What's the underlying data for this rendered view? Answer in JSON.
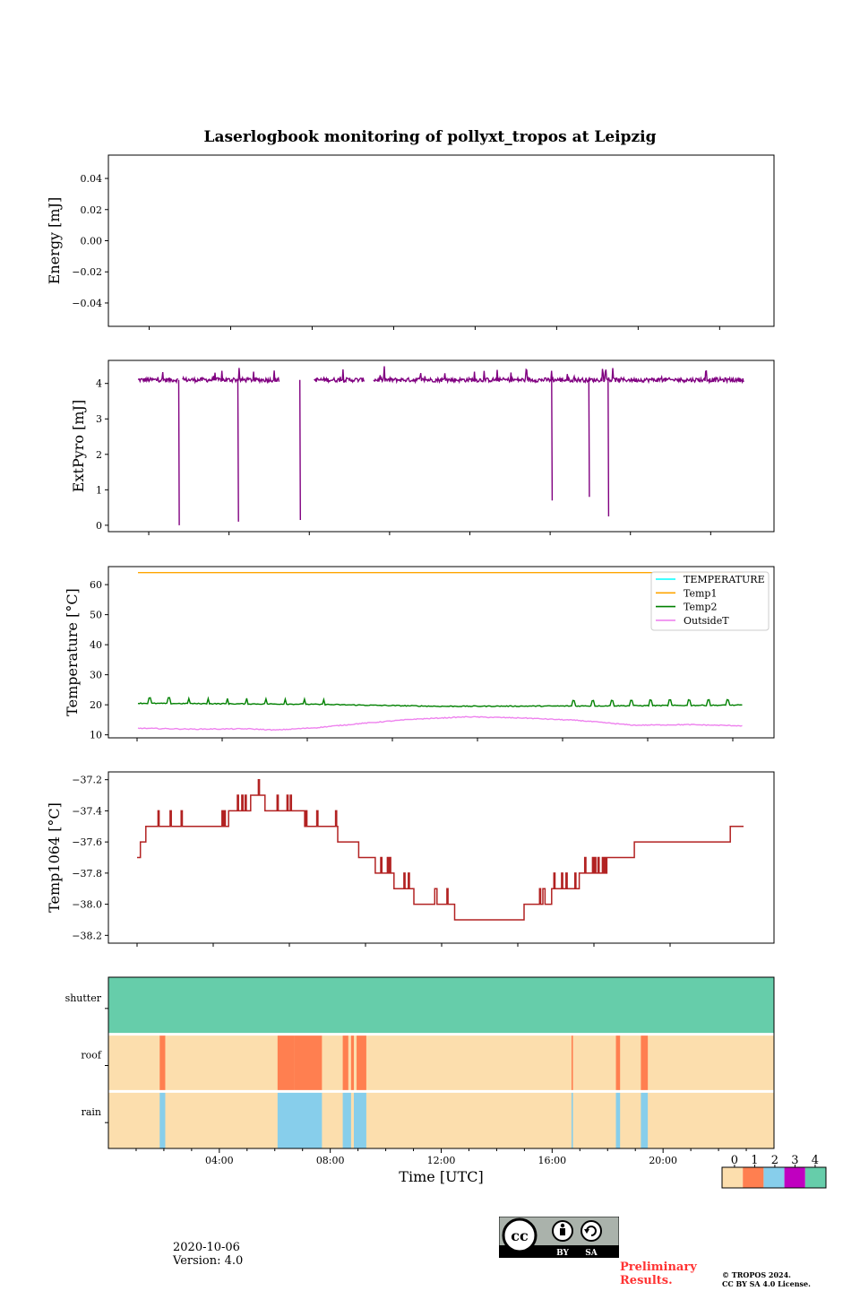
{
  "title": "Laserlogbook monitoring of pollyxt_tropos at Leipzig",
  "footer": {
    "date": "2020-10-06",
    "version": "Version: 4.0",
    "preliminary": "Preliminary Results.",
    "copyright_line1": "© TROPOS 2024.",
    "copyright_line2": "CC BY SA 4.0 License.",
    "cc_text": "cc",
    "cc_by": "BY",
    "cc_sa": "SA"
  },
  "colors": {
    "extpyro": "#800080",
    "temp1": "#ffa500",
    "temp2": "#008000",
    "temperature": "#00ffff",
    "outside": "#ee82ee",
    "temp1064": "#b22222",
    "status0": "#fcdead",
    "status1": "#ff7f50",
    "status2": "#87ceeb",
    "status3": "#c000c0",
    "status4": "#66cdaa"
  },
  "chart_data": [
    {
      "type": "line",
      "name": "energy",
      "ylabel": "Energy [mJ]",
      "ylim": [
        -0.055,
        0.055
      ],
      "yticks": [
        0.04,
        0.02,
        0.0,
        -0.02,
        -0.04
      ],
      "yticklabels": [
        "0.04",
        "0.02",
        "0.00",
        "−0.02",
        "−0.04"
      ],
      "series": []
    },
    {
      "type": "line",
      "name": "extpyro",
      "ylabel": "ExtPyro [mJ]",
      "ylim": [
        -0.18,
        4.65
      ],
      "yticks": [
        0,
        1,
        2,
        3,
        4
      ],
      "yticklabels": [
        "0",
        "1",
        "2",
        "3",
        "4"
      ],
      "series": [
        {
          "name": "ExtPyro",
          "x_range": [
            1.0,
            23.0
          ],
          "baseline": 4.1,
          "gaps": [
            [
              2.45,
              2.6
            ],
            [
              6.15,
              7.4
            ],
            [
              9.25,
              9.55
            ]
          ],
          "drops": [
            [
              2.5,
              0.0
            ],
            [
              4.65,
              0.1
            ],
            [
              6.9,
              0.15
            ],
            [
              16.05,
              0.7
            ],
            [
              17.4,
              0.8
            ],
            [
              18.1,
              0.25
            ]
          ]
        }
      ]
    },
    {
      "type": "line",
      "name": "temperature",
      "ylabel": "Temperature [°C]",
      "ylim": [
        9,
        66
      ],
      "yticks": [
        10,
        20,
        30,
        40,
        50,
        60
      ],
      "yticklabels": [
        "10",
        "20",
        "30",
        "40",
        "50",
        "60"
      ],
      "legend": [
        "TEMPERATURE",
        "Temp1",
        "Temp2",
        "OutsideT"
      ],
      "legend_loc": "top-right",
      "series": [
        {
          "name": "TEMPERATURE",
          "values": []
        },
        {
          "name": "Temp1",
          "x": [
            1.0,
            23.0
          ],
          "y": [
            64.0,
            64.0
          ]
        },
        {
          "name": "Temp2",
          "x": [
            1.0,
            7.0,
            12.0,
            17.0,
            23.0
          ],
          "y": [
            20.5,
            20.2,
            19.5,
            19.6,
            19.9
          ]
        },
        {
          "name": "OutsideT",
          "x": [
            1.0,
            3.0,
            5.0,
            6.0,
            7.5,
            9.0,
            11.0,
            13.0,
            15.0,
            17.0,
            19.0,
            21.0,
            23.0
          ],
          "y": [
            12.2,
            11.9,
            12.0,
            11.6,
            12.4,
            13.7,
            15.2,
            16.0,
            15.6,
            14.8,
            13.2,
            13.4,
            13.0
          ]
        }
      ]
    },
    {
      "type": "line",
      "name": "temp1064",
      "ylabel": "Temp1064 [°C]",
      "ylim": [
        -38.25,
        -37.15
      ],
      "yticks": [
        -37.2,
        -37.4,
        -37.6,
        -37.8,
        -38.0,
        -38.2
      ],
      "yticklabels": [
        "−37.2",
        "−37.4",
        "−37.6",
        "−37.8",
        "−38.0",
        "−38.2"
      ],
      "series": [
        {
          "name": "Temp1064",
          "x": [
            1.0,
            1.3,
            3.6,
            4.0,
            4.3,
            4.9,
            5.3,
            5.6,
            6.0,
            6.3,
            7.0,
            7.5,
            8.0,
            8.5,
            9.0,
            9.6,
            10.0,
            10.5,
            11.0,
            12.0,
            12.5,
            13.0,
            13.5,
            14.0,
            14.5,
            15.0,
            15.6,
            16.0,
            16.5,
            17.0,
            17.5,
            18.0,
            18.5,
            19.0,
            19.5,
            20.0,
            20.5,
            21.0,
            21.5,
            22.0,
            22.5,
            23.0
          ],
          "y": [
            -37.7,
            -37.55,
            -37.5,
            -37.55,
            -37.45,
            -37.4,
            -37.3,
            -37.35,
            -37.4,
            -37.35,
            -37.45,
            -37.5,
            -37.5,
            -37.6,
            -37.65,
            -37.75,
            -37.8,
            -37.9,
            -37.95,
            -38.0,
            -38.05,
            -38.1,
            -38.15,
            -38.15,
            -38.1,
            -38.05,
            -38.0,
            -37.95,
            -37.9,
            -37.85,
            -37.8,
            -37.75,
            -37.7,
            -37.65,
            -37.65,
            -37.6,
            -37.65,
            -37.65,
            -37.6,
            -37.6,
            -37.55,
            -37.5
          ]
        }
      ]
    },
    {
      "type": "heatmap",
      "name": "status",
      "xlabel": "Time [UTC]",
      "xticks": [
        4,
        8,
        12,
        16,
        20
      ],
      "xticklabels": [
        "04:00",
        "08:00",
        "12:00",
        "16:00",
        "20:00"
      ],
      "xlim": [
        0,
        24
      ],
      "rows": [
        "shutter",
        "roof",
        "rain"
      ],
      "colorbar": {
        "ticks": [
          "0",
          "1",
          "2",
          "3",
          "4"
        ]
      },
      "intervals": {
        "shutter": [
          [
            0,
            24,
            4
          ]
        ],
        "roof": [
          [
            1.85,
            2.05,
            1
          ],
          [
            6.1,
            6.7,
            1
          ],
          [
            6.7,
            7.7,
            1
          ],
          [
            8.45,
            8.65,
            1
          ],
          [
            8.75,
            8.85,
            1
          ],
          [
            8.95,
            9.3,
            1
          ],
          [
            16.7,
            16.75,
            1
          ],
          [
            18.3,
            18.45,
            1
          ],
          [
            19.2,
            19.45,
            1
          ]
        ],
        "rain": [
          [
            1.85,
            2.05,
            2
          ],
          [
            6.1,
            7.7,
            2
          ],
          [
            8.45,
            8.75,
            2
          ],
          [
            8.85,
            9.3,
            2
          ],
          [
            16.7,
            16.75,
            2
          ],
          [
            18.3,
            18.45,
            2
          ],
          [
            19.2,
            19.45,
            2
          ]
        ]
      }
    }
  ]
}
